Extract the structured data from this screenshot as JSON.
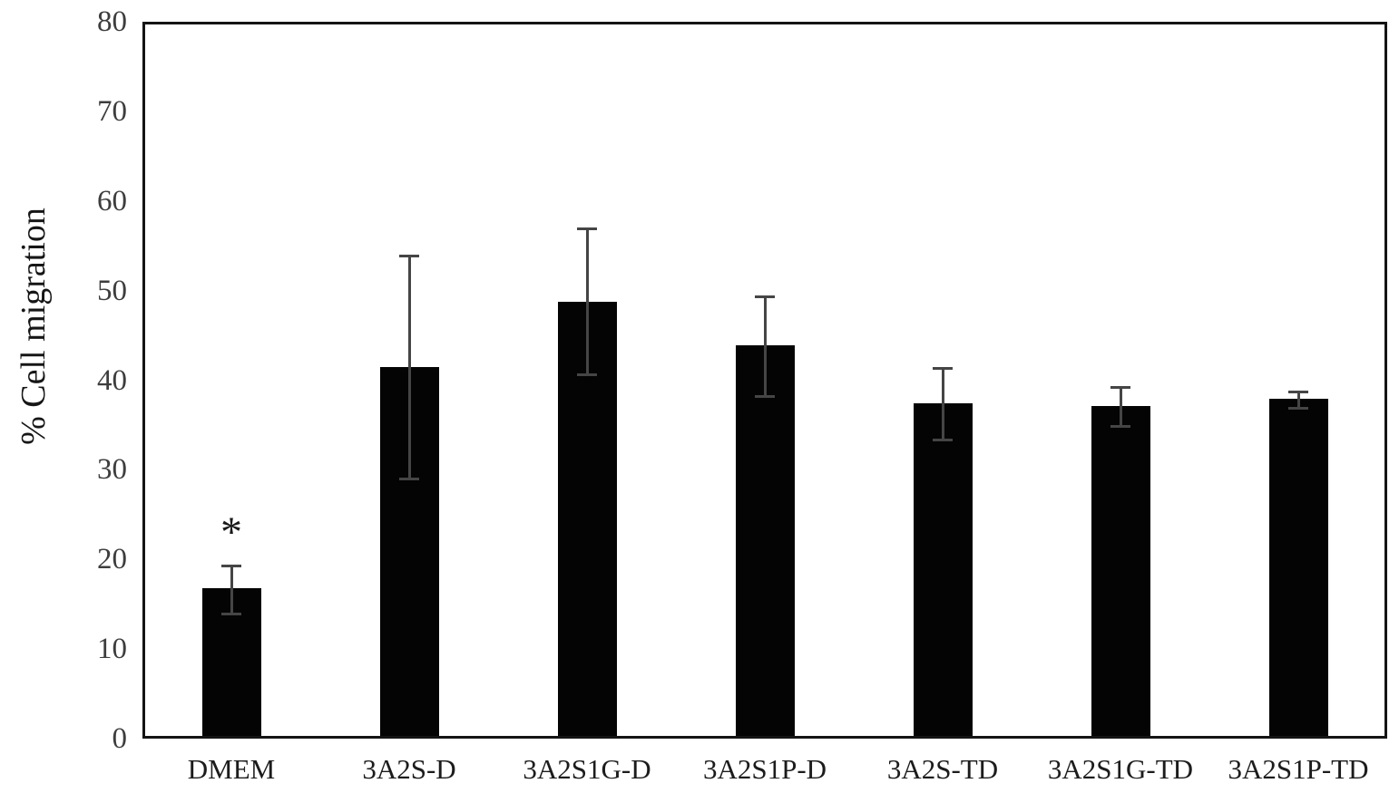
{
  "chart_data": {
    "type": "bar",
    "title": "",
    "xlabel": "",
    "ylabel": "% Cell migration",
    "ylim": [
      0,
      80
    ],
    "yticks": [
      0,
      10,
      20,
      30,
      40,
      50,
      60,
      70,
      80
    ],
    "grid": false,
    "legend": false,
    "categories": [
      "DMEM",
      "3A2S-D",
      "3A2S1G-D",
      "3A2S1P-D",
      "3A2S-TD",
      "3A2S1G-TD",
      "3A2S1P-TD"
    ],
    "values": [
      16.8,
      41.5,
      48.8,
      43.9,
      37.4,
      37.1,
      37.9
    ],
    "error_upper": [
      19.3,
      53.9,
      56.9,
      49.4,
      41.4,
      39.2,
      38.7
    ],
    "error_lower": [
      13.9,
      28.9,
      40.6,
      38.1,
      33.3,
      34.8,
      36.8
    ],
    "annotations": [
      {
        "category_index": 0,
        "text": "*"
      }
    ],
    "bar_color": "#040404",
    "error_color": "#454545",
    "frame_color": "#141414",
    "background_color": "#ffffff"
  }
}
